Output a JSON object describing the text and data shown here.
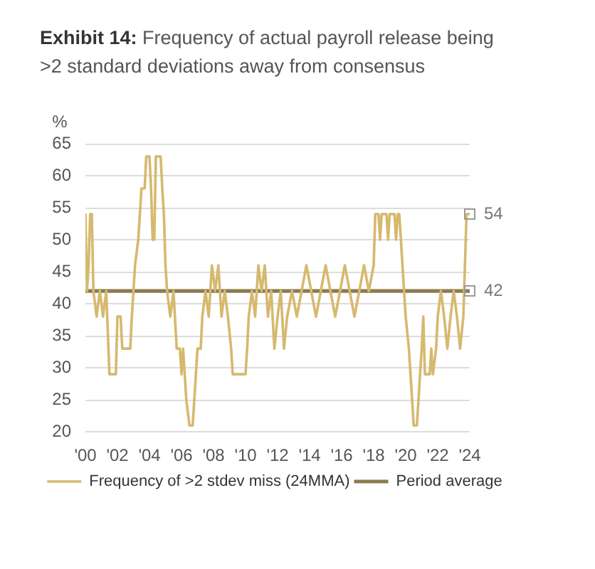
{
  "chart_data": {
    "type": "line",
    "title": "Exhibit 14: Frequency of actual payroll release being >2 standard deviations away from consensus",
    "ylabel": "%",
    "xlim": [
      2000,
      2024
    ],
    "xticks": [
      {
        "value": 2000,
        "label": "'00"
      },
      {
        "value": 2002,
        "label": "'02"
      },
      {
        "value": 2004,
        "label": "'04"
      },
      {
        "value": 2006,
        "label": "'06"
      },
      {
        "value": 2008,
        "label": "'08"
      },
      {
        "value": 2010,
        "label": "'10"
      },
      {
        "value": 2012,
        "label": "'12"
      },
      {
        "value": 2014,
        "label": "'14"
      },
      {
        "value": 2016,
        "label": "'16"
      },
      {
        "value": 2018,
        "label": "'18"
      },
      {
        "value": 2020,
        "label": "'20"
      },
      {
        "value": 2022,
        "label": "'22"
      },
      {
        "value": 2024,
        "label": "'24"
      }
    ],
    "ylim": [
      20,
      65
    ],
    "yticks": [
      20,
      25,
      30,
      35,
      40,
      45,
      50,
      55,
      60,
      65
    ],
    "grid": "y",
    "legend": "bottom",
    "annotations": [
      {
        "text": "54",
        "x": 2024,
        "y": 54
      },
      {
        "text": "42",
        "x": 2024,
        "y": 42
      }
    ],
    "series": [
      {
        "name": "Frequency of >2 stdev miss (24MMA)",
        "color": "#d6b96f",
        "x": [
          2000,
          2000.1,
          2000.2,
          2000.3,
          2000.4,
          2000.5,
          2000.7,
          2000.9,
          2001.1,
          2001.3,
          2001.5,
          2001.9,
          2002,
          2002.2,
          2002.3,
          2002.8,
          2002.9,
          2003.1,
          2003.3,
          2003.4,
          2003.5,
          2003.7,
          2003.8,
          2004,
          2004.1,
          2004.2,
          2004.3,
          2004.4,
          2004.7,
          2004.8,
          2004.9,
          2005,
          2005.1,
          2005.3,
          2005.5,
          2005.7,
          2005.9,
          2006,
          2006.1,
          2006.3,
          2006.5,
          2006.7,
          2006.8,
          2006.9,
          2007,
          2007.2,
          2007.3,
          2007.5,
          2007.7,
          2007.9,
          2008.1,
          2008.3,
          2008.5,
          2008.7,
          2008.9,
          2009.1,
          2009.2,
          2010,
          2010.1,
          2010.2,
          2010.4,
          2010.6,
          2010.8,
          2011,
          2011.2,
          2011.4,
          2011.6,
          2011.8,
          2012,
          2012.2,
          2012.4,
          2012.6,
          2012.9,
          2013.2,
          2013.5,
          2013.8,
          2014.1,
          2014.4,
          2014.7,
          2015,
          2015.3,
          2015.6,
          2015.9,
          2016.2,
          2016.5,
          2016.8,
          2017.1,
          2017.4,
          2017.7,
          2018,
          2018.1,
          2018.3,
          2018.4,
          2018.5,
          2018.8,
          2018.9,
          2019,
          2019.3,
          2019.4,
          2019.5,
          2019.6,
          2019.8,
          2020,
          2020.2,
          2020.3,
          2020.4,
          2020.5,
          2020.7,
          2020.8,
          2020.9,
          2021,
          2021.1,
          2021.2,
          2021.5,
          2021.6,
          2021.7,
          2021.9,
          2022,
          2022.2,
          2022.4,
          2022.6,
          2022.8,
          2023,
          2023.2,
          2023.4,
          2023.6,
          2023.8,
          2024
        ],
        "values": [
          54,
          42,
          46,
          54,
          54,
          42,
          38,
          42,
          38,
          42,
          29,
          29,
          38,
          38,
          33,
          33,
          38,
          46,
          50,
          54,
          58,
          58,
          63,
          63,
          58,
          50,
          50,
          63,
          63,
          58,
          54,
          46,
          42,
          38,
          42,
          33,
          33,
          29,
          33,
          25,
          21,
          21,
          25,
          29,
          33,
          33,
          38,
          42,
          38,
          46,
          42,
          46,
          38,
          42,
          38,
          33,
          29,
          29,
          33,
          38,
          42,
          38,
          46,
          42,
          46,
          38,
          42,
          33,
          38,
          42,
          33,
          38,
          42,
          38,
          42,
          46,
          42,
          38,
          42,
          46,
          42,
          38,
          42,
          46,
          42,
          38,
          42,
          46,
          42,
          46,
          54,
          54,
          50,
          54,
          54,
          50,
          54,
          54,
          50,
          54,
          54,
          46,
          38,
          33,
          29,
          25,
          21,
          21,
          25,
          29,
          33,
          38,
          29,
          29,
          33,
          29,
          33,
          38,
          42,
          38,
          33,
          38,
          42,
          38,
          33,
          38,
          54,
          54
        ]
      },
      {
        "name": "Period average",
        "color": "#8c7b4f",
        "x": [
          2000,
          2024
        ],
        "values": [
          42,
          42
        ]
      }
    ]
  }
}
